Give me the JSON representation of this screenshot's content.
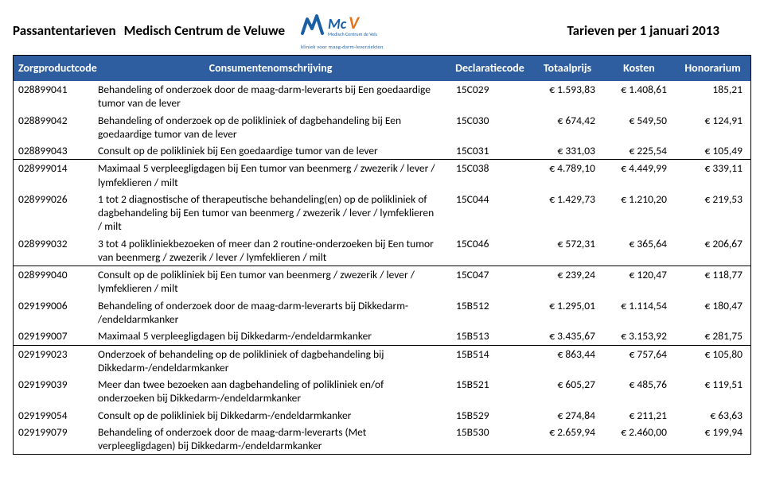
{
  "header": {
    "left_title": "Passantentarieven",
    "center_name": "Medisch Centrum de Veluwe",
    "right_title": "Tarieven per 1 januari 2013",
    "logo_subtext": "kliniek voor maag-darm-leverziekten"
  },
  "columns": {
    "zorgproductcode": "Zorgproductcode",
    "omschrijving": "Consumentenomschrijving",
    "declaratiecode": "Declaratiecode",
    "totaalprijs": "Totaalprijs",
    "kosten": "Kosten",
    "honorarium": "Honorarium"
  },
  "blocks": [
    {
      "rows": [
        {
          "code": "028899041",
          "desc": "Behandeling of onderzoek door de maag-darm-leverarts bij Een goedaardige tumor van de lever",
          "decl": "15C029",
          "tot": "€ 1.593,83",
          "kost": "€ 1.408,61",
          "hon": "185,21"
        },
        {
          "code": "028899042",
          "desc": "Behandeling of onderzoek op de polikliniek of dagbehandeling bij Een goedaardige tumor van de lever",
          "decl": "15C030",
          "tot": "€ 674,42",
          "kost": "€ 549,50",
          "hon": "€ 124,91"
        },
        {
          "code": "028899043",
          "desc": "Consult op de polikliniek bij Een goedaardige tumor van de lever",
          "decl": "15C031",
          "tot": "€ 331,03",
          "kost": "€ 225,54",
          "hon": "€ 105,49"
        }
      ]
    },
    {
      "rows": [
        {
          "code": "028999014",
          "desc": "Maximaal 5 verpleegligdagen bij Een tumor van beenmerg / zwezerik / lever / lymfeklieren / milt",
          "decl": "15C038",
          "tot": "€ 4.789,10",
          "kost": "€ 4.449,99",
          "hon": "€ 339,11"
        },
        {
          "code": "028999026",
          "desc": "1 tot 2 diagnostische of therapeutische behandeling(en) op de polikliniek of dagbehandeling bij Een tumor van beenmerg / zwezerik / lever / lymfeklieren / milt",
          "decl": "15C044",
          "tot": "€ 1.429,73",
          "kost": "€ 1.210,20",
          "hon": "€ 219,53"
        },
        {
          "code": "028999032",
          "desc": "3 tot 4 polikliniekbezoeken of meer dan 2 routine-onderzoeken bij Een tumor van beenmerg / zwezerik / lever / lymfeklieren / milt",
          "decl": "15C046",
          "tot": "€ 572,31",
          "kost": "€ 365,64",
          "hon": "€ 206,67"
        }
      ]
    },
    {
      "rows": [
        {
          "code": "028999040",
          "desc": "Consult op de polikliniek bij Een tumor van beenmerg / zwezerik / lever / lymfeklieren / milt",
          "decl": "15C047",
          "tot": "€ 239,24",
          "kost": "€ 120,47",
          "hon": "€ 118,77"
        },
        {
          "code": "029199006",
          "desc": "Behandeling of onderzoek door de maag-darm-leverarts bij Dikkedarm- /endeldarmkanker",
          "decl": "15B512",
          "tot": "€ 1.295,01",
          "kost": "€ 1.114,54",
          "hon": "€ 180,47"
        },
        {
          "code": "029199007",
          "desc": "Maximaal 5 verpleegligdagen bij Dikkedarm-/endeldarmkanker",
          "decl": "15B513",
          "tot": "€ 3.435,67",
          "kost": "€ 3.153,92",
          "hon": "€ 281,75"
        }
      ]
    },
    {
      "rows": [
        {
          "code": "029199023",
          "desc": "Onderzoek of behandeling op de polikliniek of dagbehandeling bij Dikkedarm-/endeldarmkanker",
          "decl": "15B514",
          "tot": "€ 863,44",
          "kost": "€ 757,64",
          "hon": "€ 105,80"
        },
        {
          "code": "029199039",
          "desc": "Meer dan twee bezoeken aan dagbehandeling of polikliniek en/of onderzoeken bij Dikkedarm-/endeldarmkanker",
          "decl": "15B521",
          "tot": "€ 605,27",
          "kost": "€ 485,76",
          "hon": "€ 119,51"
        },
        {
          "code": "029199054",
          "desc": "Consult op de polikliniek bij Dikkedarm-/endeldarmkanker",
          "decl": "15B529",
          "tot": "€ 274,84",
          "kost": "€ 211,21",
          "hon": "€ 63,63"
        },
        {
          "code": "029199079",
          "desc": "Behandeling of onderzoek door de maag-darm-leverarts (Met verpleegligdagen) bij Dikkedarm-/endeldarmkanker",
          "decl": "15B530",
          "tot": "€ 2.659,94",
          "kost": "€ 2.460,00",
          "hon": "€ 199,94"
        }
      ]
    }
  ]
}
